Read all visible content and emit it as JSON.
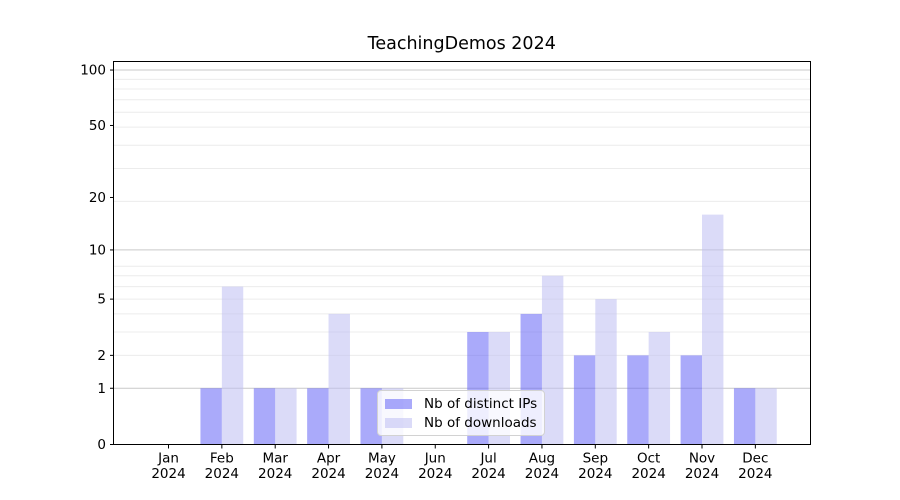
{
  "chart_data": {
    "type": "bar",
    "title": "TeachingDemos 2024",
    "categories": [
      "Jan",
      "Feb",
      "Mar",
      "Apr",
      "May",
      "Jun",
      "Jul",
      "Aug",
      "Sep",
      "Oct",
      "Nov",
      "Dec"
    ],
    "year_label": "2024",
    "series": [
      {
        "name": "Nb of distinct IPs",
        "color": "#6464f5",
        "values": [
          0,
          1,
          1,
          1,
          1,
          0,
          3,
          4,
          2,
          2,
          2,
          1
        ]
      },
      {
        "name": "Nb of downloads",
        "color": "#bdbdf2",
        "values": [
          0,
          6,
          1,
          4,
          1,
          0,
          3,
          7,
          5,
          3,
          16,
          1
        ]
      }
    ],
    "y_ticks": [
      0,
      1,
      2,
      5,
      10,
      20,
      50,
      100
    ],
    "y_scale": "log10(value+1)",
    "ylim": [
      0,
      110
    ],
    "grid": "on",
    "legend_position": "lower center",
    "colors": {
      "grid_minor": "#ececec",
      "grid_major": "#c9c9c9",
      "axis": "#000000",
      "text": "#000000",
      "legend_border": "#d2d2d2"
    }
  }
}
